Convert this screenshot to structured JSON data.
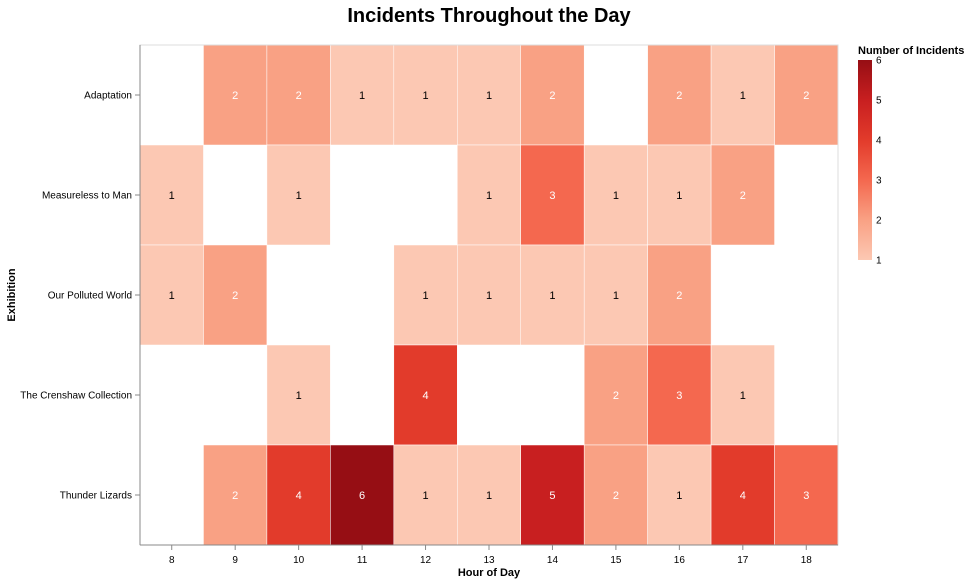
{
  "chart_data": {
    "type": "heatmap",
    "title": "Incidents Throughout the Day",
    "xlabel": "Hour of Day",
    "ylabel": "Exhibition",
    "x": [
      8,
      9,
      10,
      11,
      12,
      13,
      14,
      15,
      16,
      17,
      18
    ],
    "y": [
      "Adaptation",
      "Measureless to Man",
      "Our Polluted World",
      "The Crenshaw Collection",
      "Thunder Lizards"
    ],
    "values": [
      [
        null,
        2,
        2,
        1,
        1,
        1,
        2,
        null,
        2,
        1,
        2
      ],
      [
        1,
        null,
        1,
        null,
        null,
        1,
        3,
        1,
        1,
        2,
        null
      ],
      [
        1,
        2,
        null,
        null,
        1,
        1,
        1,
        1,
        2,
        null,
        null
      ],
      [
        null,
        null,
        1,
        null,
        4,
        null,
        null,
        2,
        3,
        1,
        null
      ],
      [
        null,
        2,
        4,
        6,
        1,
        1,
        5,
        2,
        1,
        4,
        3
      ]
    ],
    "legend": {
      "title": "Number of Incidents",
      "position": "top-right",
      "ticks": [
        1,
        2,
        3,
        4,
        5,
        6
      ]
    },
    "color_scale": {
      "domain": [
        1,
        2,
        3,
        4,
        5,
        6
      ],
      "colors": [
        "#fcc8b3",
        "#f9a184",
        "#f4684f",
        "#e23b2b",
        "#c81f20",
        "#960e14"
      ]
    },
    "grid": false
  }
}
